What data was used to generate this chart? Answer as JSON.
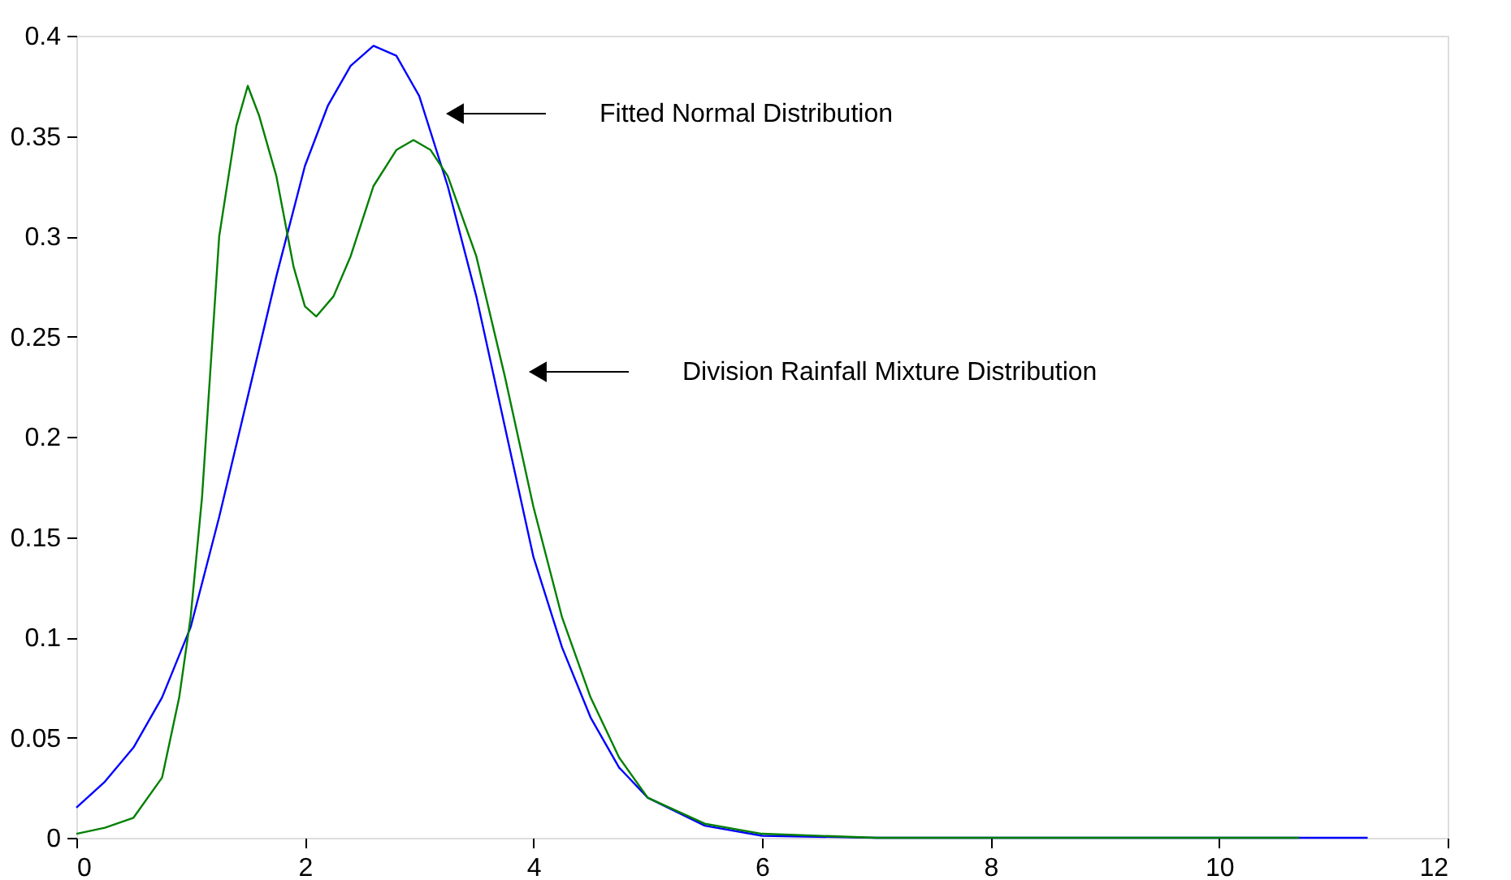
{
  "chart_data": {
    "type": "line",
    "series": [
      {
        "color": "#0000ff",
        "x": [
          0,
          0.25,
          0.5,
          0.75,
          1,
          1.25,
          1.5,
          1.75,
          2,
          2.2,
          2.4,
          2.6,
          2.8,
          3,
          3.25,
          3.5,
          3.75,
          4,
          4.25,
          4.5,
          4.75,
          5,
          5.5,
          6,
          7,
          8,
          9,
          10,
          11.3
        ],
        "values": [
          0.015,
          0.028,
          0.045,
          0.07,
          0.105,
          0.16,
          0.22,
          0.28,
          0.335,
          0.365,
          0.385,
          0.395,
          0.39,
          0.37,
          0.325,
          0.27,
          0.205,
          0.14,
          0.095,
          0.06,
          0.035,
          0.02,
          0.006,
          0.001,
          0,
          0,
          0,
          0,
          0
        ]
      },
      {
        "color": "#008000",
        "x": [
          0,
          0.25,
          0.5,
          0.75,
          0.9,
          1,
          1.1,
          1.25,
          1.4,
          1.5,
          1.6,
          1.75,
          1.9,
          2,
          2.1,
          2.25,
          2.4,
          2.6,
          2.8,
          2.95,
          3.1,
          3.25,
          3.5,
          3.75,
          4,
          4.25,
          4.5,
          4.75,
          5,
          5.5,
          6,
          7,
          10.7
        ],
        "values": [
          0.002,
          0.005,
          0.01,
          0.03,
          0.07,
          0.11,
          0.17,
          0.3,
          0.355,
          0.375,
          0.36,
          0.33,
          0.285,
          0.265,
          0.26,
          0.27,
          0.29,
          0.325,
          0.343,
          0.348,
          0.343,
          0.33,
          0.29,
          0.23,
          0.165,
          0.11,
          0.07,
          0.04,
          0.02,
          0.007,
          0.002,
          0,
          0
        ]
      }
    ],
    "xlim": [
      0,
      12
    ],
    "xticks": [
      0,
      2,
      4,
      6,
      8,
      10,
      12
    ],
    "ylim": [
      0,
      0.4
    ],
    "yticks": [
      0,
      0.05,
      0.1,
      0.15,
      0.2,
      0.25,
      0.3,
      0.35,
      0.4
    ],
    "grid": false,
    "marker": "none",
    "line_style": "solid",
    "annotations": [
      "Fitted Normal Distribution",
      "Division Rainfall Mixture Distribution"
    ]
  }
}
